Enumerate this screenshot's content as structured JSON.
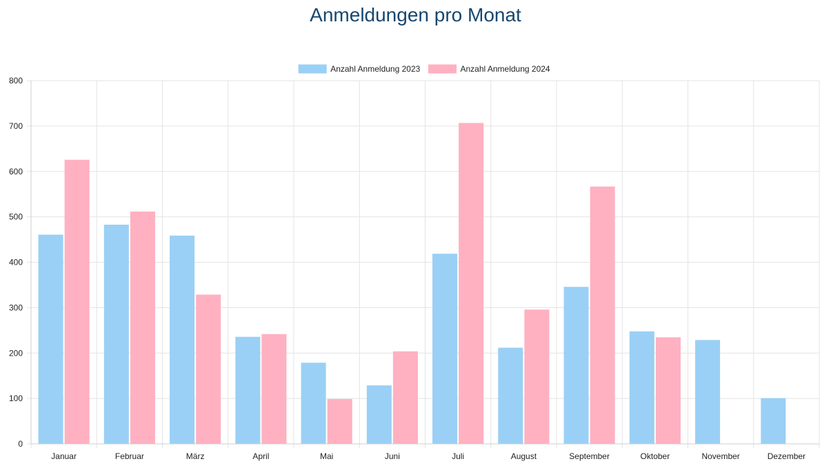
{
  "chart_data": {
    "type": "bar",
    "title": "Anmeldungen pro Monat",
    "xlabel": "",
    "ylabel": "",
    "ylim": [
      0,
      800
    ],
    "yticks": [
      0,
      100,
      200,
      300,
      400,
      500,
      600,
      700,
      800
    ],
    "grid": true,
    "legend_position": "top-center",
    "categories": [
      "Januar",
      "Februar",
      "März",
      "April",
      "Mai",
      "Juni",
      "Juli",
      "August",
      "September",
      "Oktober",
      "November",
      "Dezember"
    ],
    "series": [
      {
        "name": "Anzahl Anmeldung 2023",
        "color": "#9ad0f5",
        "values": [
          460,
          482,
          458,
          235,
          178,
          128,
          418,
          211,
          345,
          247,
          228,
          100
        ]
      },
      {
        "name": "Anzahl Anmeldung 2024",
        "color": "#ffb1c1",
        "values": [
          625,
          511,
          328,
          241,
          98,
          203,
          706,
          295,
          566,
          234,
          null,
          null
        ]
      }
    ]
  }
}
